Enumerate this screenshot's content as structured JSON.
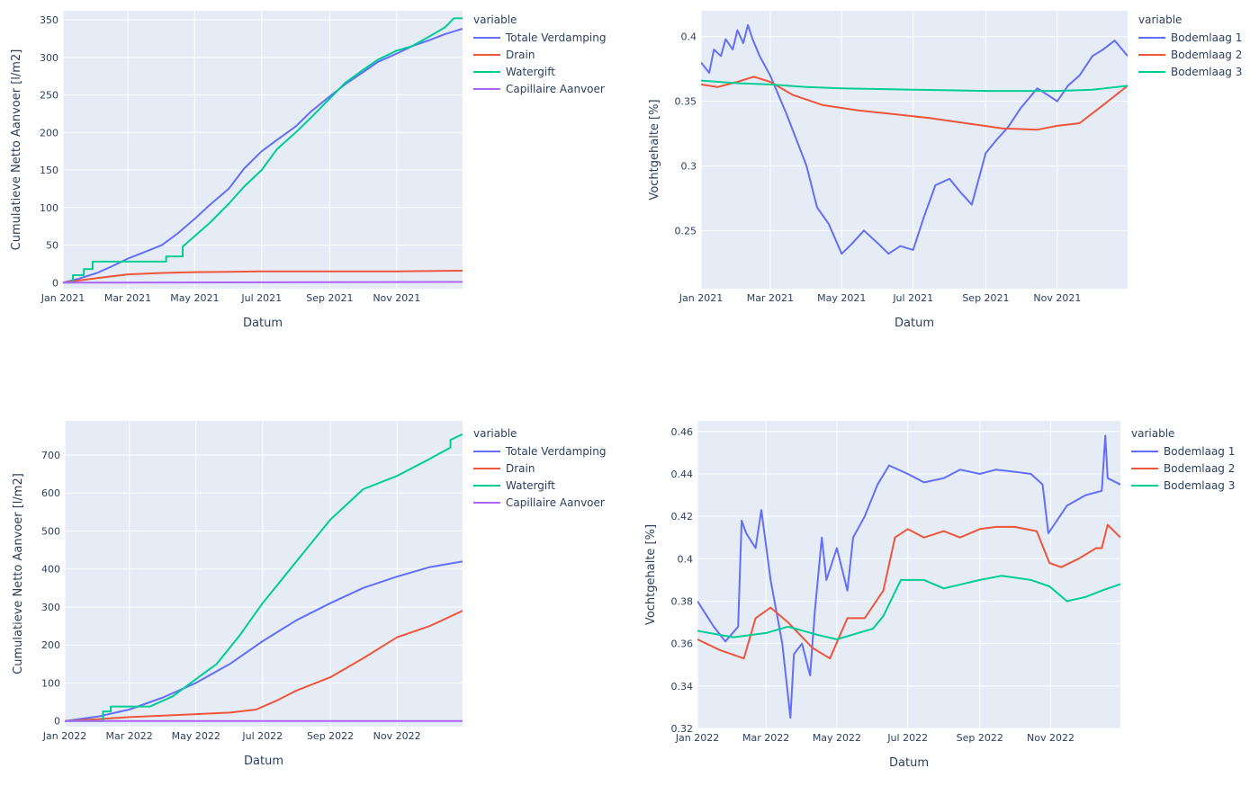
{
  "colors": {
    "plot_bg": "#E5ECF6",
    "grid": "#FFFFFF",
    "text": "#2A3F5F",
    "blue": "#636EFA",
    "red": "#EF553B",
    "green": "#00CC96",
    "purple": "#AB63FA"
  },
  "chart_data": [
    {
      "type": "line",
      "xlabel": "Datum",
      "ylabel": "Cumulatieve Netto Aanvoer [l/m2]",
      "legend_title": "variable",
      "legend_position": "top-right outside",
      "grid": true,
      "xlim": [
        "2021-01-01",
        "2021-12-31"
      ],
      "ylim": [
        -8,
        362
      ],
      "xticks": [
        {
          "date": "2021-01-01",
          "label": "Jan 2021"
        },
        {
          "date": "2021-03-01",
          "label": "Mar 2021"
        },
        {
          "date": "2021-05-01",
          "label": "May 2021"
        },
        {
          "date": "2021-07-01",
          "label": "Jul 2021"
        },
        {
          "date": "2021-09-01",
          "label": "Sep 2021"
        },
        {
          "date": "2021-11-01",
          "label": "Nov 2021"
        }
      ],
      "yticks": [
        {
          "value": 0,
          "label": "0"
        },
        {
          "value": 50,
          "label": "50"
        },
        {
          "value": 100,
          "label": "100"
        },
        {
          "value": 150,
          "label": "150"
        },
        {
          "value": 200,
          "label": "200"
        },
        {
          "value": 250,
          "label": "250"
        },
        {
          "value": 300,
          "label": "300"
        },
        {
          "value": 350,
          "label": "350"
        }
      ],
      "series": [
        {
          "name": "Totale Verdamping",
          "color": "#636EFA",
          "x": [
            "2021-01-01",
            "2021-01-15",
            "2021-02-01",
            "2021-02-15",
            "2021-03-01",
            "2021-03-15",
            "2021-04-01",
            "2021-04-15",
            "2021-05-01",
            "2021-05-15",
            "2021-06-01",
            "2021-06-15",
            "2021-07-01",
            "2021-07-15",
            "2021-08-01",
            "2021-08-15",
            "2021-09-01",
            "2021-09-15",
            "2021-10-01",
            "2021-10-15",
            "2021-11-01",
            "2021-11-15",
            "2021-12-01",
            "2021-12-15",
            "2021-12-31"
          ],
          "y": [
            0,
            5,
            13,
            22,
            32,
            40,
            50,
            65,
            85,
            104,
            125,
            152,
            175,
            190,
            208,
            228,
            248,
            264,
            280,
            294,
            305,
            315,
            323,
            331,
            338
          ]
        },
        {
          "name": "Drain",
          "color": "#EF553B",
          "x": [
            "2021-01-01",
            "2021-02-01",
            "2021-03-01",
            "2021-04-01",
            "2021-05-01",
            "2021-06-01",
            "2021-07-01",
            "2021-09-01",
            "2021-11-01",
            "2021-12-31"
          ],
          "y": [
            0,
            6,
            11,
            13,
            14,
            14.5,
            15,
            15,
            15,
            16
          ]
        },
        {
          "name": "Watergift",
          "color": "#00CC96",
          "x": [
            "2021-01-01",
            "2021-01-10",
            "2021-01-10",
            "2021-01-20",
            "2021-01-20",
            "2021-01-28",
            "2021-01-28",
            "2021-04-05",
            "2021-04-05",
            "2021-04-20",
            "2021-04-20",
            "2021-05-01",
            "2021-05-15",
            "2021-06-01",
            "2021-06-15",
            "2021-07-01",
            "2021-07-15",
            "2021-08-01",
            "2021-08-15",
            "2021-09-01",
            "2021-09-15",
            "2021-10-01",
            "2021-10-15",
            "2021-11-01",
            "2021-11-15",
            "2021-12-01",
            "2021-12-15",
            "2021-12-23",
            "2021-12-31"
          ],
          "y": [
            0,
            0,
            10,
            10,
            18,
            18,
            28,
            28,
            35,
            35,
            48,
            62,
            80,
            105,
            128,
            150,
            178,
            200,
            220,
            245,
            266,
            283,
            297,
            309,
            315,
            328,
            340,
            352,
            352
          ],
          "step": true
        },
        {
          "name": "Capillaire Aanvoer",
          "color": "#AB63FA",
          "x": [
            "2021-01-01",
            "2021-12-31"
          ],
          "y": [
            0,
            1
          ]
        }
      ]
    },
    {
      "type": "line",
      "xlabel": "Datum",
      "ylabel": "Vochtgehalte [%]",
      "legend_title": "variable",
      "legend_position": "top-right outside",
      "grid": true,
      "xlim": [
        "2021-01-01",
        "2021-12-31"
      ],
      "ylim": [
        0.205,
        0.42
      ],
      "xticks": [
        {
          "date": "2021-01-01",
          "label": "Jan 2021"
        },
        {
          "date": "2021-03-01",
          "label": "Mar 2021"
        },
        {
          "date": "2021-05-01",
          "label": "May 2021"
        },
        {
          "date": "2021-07-01",
          "label": "Jul 2021"
        },
        {
          "date": "2021-09-01",
          "label": "Sep 2021"
        },
        {
          "date": "2021-11-01",
          "label": "Nov 2021"
        }
      ],
      "yticks": [
        {
          "value": 0.25,
          "label": "0.25"
        },
        {
          "value": 0.3,
          "label": "0.3"
        },
        {
          "value": 0.35,
          "label": "0.35"
        },
        {
          "value": 0.4,
          "label": "0.4"
        }
      ],
      "series": [
        {
          "name": "Bodemlaag 1",
          "color": "#636EFA",
          "x": [
            "2021-01-01",
            "2021-01-08",
            "2021-01-12",
            "2021-01-18",
            "2021-01-22",
            "2021-01-28",
            "2021-02-01",
            "2021-02-06",
            "2021-02-10",
            "2021-02-14",
            "2021-02-20",
            "2021-03-01",
            "2021-03-15",
            "2021-04-01",
            "2021-04-10",
            "2021-04-20",
            "2021-05-01",
            "2021-05-10",
            "2021-05-20",
            "2021-06-01",
            "2021-06-10",
            "2021-06-20",
            "2021-07-01",
            "2021-07-10",
            "2021-07-20",
            "2021-08-01",
            "2021-08-10",
            "2021-08-20",
            "2021-09-01",
            "2021-09-10",
            "2021-09-20",
            "2021-10-01",
            "2021-10-15",
            "2021-11-01",
            "2021-11-10",
            "2021-11-20",
            "2021-12-01",
            "2021-12-10",
            "2021-12-20",
            "2021-12-31"
          ],
          "y": [
            0.38,
            0.372,
            0.39,
            0.385,
            0.398,
            0.39,
            0.405,
            0.395,
            0.409,
            0.398,
            0.385,
            0.37,
            0.34,
            0.3,
            0.268,
            0.255,
            0.232,
            0.24,
            0.25,
            0.24,
            0.232,
            0.238,
            0.235,
            0.26,
            0.285,
            0.29,
            0.28,
            0.27,
            0.31,
            0.32,
            0.33,
            0.345,
            0.36,
            0.35,
            0.362,
            0.37,
            0.385,
            0.39,
            0.397,
            0.385
          ]
        },
        {
          "name": "Bodemlaag 2",
          "color": "#EF553B",
          "x": [
            "2021-01-01",
            "2021-01-15",
            "2021-02-01",
            "2021-02-15",
            "2021-03-01",
            "2021-03-20",
            "2021-04-15",
            "2021-05-15",
            "2021-06-15",
            "2021-07-15",
            "2021-08-15",
            "2021-09-15",
            "2021-10-15",
            "2021-11-01",
            "2021-11-20",
            "2021-12-10",
            "2021-12-31"
          ],
          "y": [
            0.363,
            0.361,
            0.365,
            0.369,
            0.365,
            0.355,
            0.347,
            0.343,
            0.34,
            0.337,
            0.333,
            0.329,
            0.328,
            0.331,
            0.333,
            0.347,
            0.362
          ]
        },
        {
          "name": "Bodemlaag 3",
          "color": "#00CC96",
          "x": [
            "2021-01-01",
            "2021-02-01",
            "2021-03-01",
            "2021-04-01",
            "2021-05-01",
            "2021-06-01",
            "2021-07-01",
            "2021-08-01",
            "2021-09-01",
            "2021-10-01",
            "2021-11-01",
            "2021-12-01",
            "2021-12-31"
          ],
          "y": [
            0.366,
            0.364,
            0.363,
            0.361,
            0.36,
            0.3595,
            0.359,
            0.3585,
            0.358,
            0.358,
            0.358,
            0.359,
            0.362
          ]
        }
      ]
    },
    {
      "type": "line",
      "xlabel": "Datum",
      "ylabel": "Cumulatieve Netto Aanvoer [l/m2]",
      "legend_title": "variable",
      "legend_position": "top-right outside",
      "grid": true,
      "xlim": [
        "2022-01-01",
        "2022-12-31"
      ],
      "ylim": [
        -15,
        790
      ],
      "xticks": [
        {
          "date": "2022-01-01",
          "label": "Jan 2022"
        },
        {
          "date": "2022-03-01",
          "label": "Mar 2022"
        },
        {
          "date": "2022-05-01",
          "label": "May 2022"
        },
        {
          "date": "2022-07-01",
          "label": "Jul 2022"
        },
        {
          "date": "2022-09-01",
          "label": "Sep 2022"
        },
        {
          "date": "2022-11-01",
          "label": "Nov 2022"
        }
      ],
      "yticks": [
        {
          "value": 0,
          "label": "0"
        },
        {
          "value": 100,
          "label": "100"
        },
        {
          "value": 200,
          "label": "200"
        },
        {
          "value": 300,
          "label": "300"
        },
        {
          "value": 400,
          "label": "400"
        },
        {
          "value": 500,
          "label": "500"
        },
        {
          "value": 600,
          "label": "600"
        },
        {
          "value": 700,
          "label": "700"
        }
      ],
      "series": [
        {
          "name": "Totale Verdamping",
          "color": "#636EFA",
          "x": [
            "2022-01-01",
            "2022-02-01",
            "2022-03-01",
            "2022-04-01",
            "2022-05-01",
            "2022-06-01",
            "2022-07-01",
            "2022-08-01",
            "2022-09-01",
            "2022-10-01",
            "2022-11-01",
            "2022-12-01",
            "2022-12-31"
          ],
          "y": [
            0,
            12,
            30,
            62,
            100,
            150,
            210,
            265,
            310,
            350,
            380,
            405,
            420
          ]
        },
        {
          "name": "Drain",
          "color": "#EF553B",
          "x": [
            "2022-01-01",
            "2022-02-01",
            "2022-03-01",
            "2022-04-01",
            "2022-05-01",
            "2022-06-01",
            "2022-06-25",
            "2022-07-15",
            "2022-08-01",
            "2022-09-01",
            "2022-10-01",
            "2022-11-01",
            "2022-12-01",
            "2022-12-31"
          ],
          "y": [
            0,
            5,
            10,
            14,
            18,
            22,
            30,
            55,
            80,
            115,
            165,
            220,
            250,
            290
          ]
        },
        {
          "name": "Watergift",
          "color": "#00CC96",
          "x": [
            "2022-01-01",
            "2022-02-05",
            "2022-02-05",
            "2022-02-12",
            "2022-02-12",
            "2022-03-20",
            "2022-04-10",
            "2022-05-01",
            "2022-05-20",
            "2022-06-10",
            "2022-07-01",
            "2022-08-01",
            "2022-09-01",
            "2022-10-01",
            "2022-11-01",
            "2022-12-01",
            "2022-12-20",
            "2022-12-20",
            "2022-12-31"
          ],
          "y": [
            0,
            0,
            25,
            25,
            38,
            38,
            65,
            110,
            150,
            225,
            310,
            420,
            530,
            610,
            645,
            690,
            720,
            740,
            755
          ]
        },
        {
          "name": "Capillaire Aanvoer",
          "color": "#AB63FA",
          "x": [
            "2022-01-01",
            "2022-12-31"
          ],
          "y": [
            0,
            0
          ]
        }
      ]
    },
    {
      "type": "line",
      "xlabel": "Datum",
      "ylabel": "Vochtgehalte [%]",
      "legend_title": "variable",
      "legend_position": "top-right outside",
      "grid": true,
      "xlim": [
        "2022-01-01",
        "2022-12-31"
      ],
      "ylim": [
        0.32,
        0.465
      ],
      "xticks": [
        {
          "date": "2022-01-01",
          "label": "Jan 2022"
        },
        {
          "date": "2022-03-01",
          "label": "Mar 2022"
        },
        {
          "date": "2022-05-01",
          "label": "May 2022"
        },
        {
          "date": "2022-07-01",
          "label": "Jul 2022"
        },
        {
          "date": "2022-09-01",
          "label": "Sep 2022"
        },
        {
          "date": "2022-11-01",
          "label": "Nov 2022"
        }
      ],
      "yticks": [
        {
          "value": 0.32,
          "label": "0.32"
        },
        {
          "value": 0.34,
          "label": "0.34"
        },
        {
          "value": 0.36,
          "label": "0.36"
        },
        {
          "value": 0.38,
          "label": "0.38"
        },
        {
          "value": 0.4,
          "label": "0.4"
        },
        {
          "value": 0.42,
          "label": "0.42"
        },
        {
          "value": 0.44,
          "label": "0.44"
        },
        {
          "value": 0.46,
          "label": "0.46"
        }
      ],
      "series": [
        {
          "name": "Bodemlaag 1",
          "color": "#636EFA",
          "x": [
            "2022-01-01",
            "2022-01-15",
            "2022-01-25",
            "2022-02-05",
            "2022-02-08",
            "2022-02-12",
            "2022-02-20",
            "2022-02-25",
            "2022-03-05",
            "2022-03-15",
            "2022-03-22",
            "2022-03-25",
            "2022-04-01",
            "2022-04-08",
            "2022-04-12",
            "2022-04-18",
            "2022-04-22",
            "2022-05-01",
            "2022-05-10",
            "2022-05-15",
            "2022-05-25",
            "2022-06-05",
            "2022-06-15",
            "2022-07-01",
            "2022-07-15",
            "2022-08-01",
            "2022-08-15",
            "2022-09-01",
            "2022-09-15",
            "2022-10-01",
            "2022-10-15",
            "2022-10-25",
            "2022-10-30",
            "2022-11-15",
            "2022-12-01",
            "2022-12-15",
            "2022-12-18",
            "2022-12-20",
            "2022-12-31"
          ],
          "y": [
            0.38,
            0.368,
            0.361,
            0.368,
            0.418,
            0.412,
            0.405,
            0.423,
            0.39,
            0.36,
            0.325,
            0.355,
            0.36,
            0.345,
            0.375,
            0.41,
            0.39,
            0.405,
            0.385,
            0.41,
            0.42,
            0.435,
            0.444,
            0.44,
            0.436,
            0.438,
            0.442,
            0.44,
            0.442,
            0.441,
            0.44,
            0.435,
            0.412,
            0.425,
            0.43,
            0.432,
            0.458,
            0.438,
            0.435
          ]
        },
        {
          "name": "Bodemlaag 2",
          "color": "#EF553B",
          "x": [
            "2022-01-01",
            "2022-01-20",
            "2022-02-10",
            "2022-02-20",
            "2022-03-05",
            "2022-03-20",
            "2022-04-10",
            "2022-04-25",
            "2022-05-10",
            "2022-05-25",
            "2022-06-10",
            "2022-06-20",
            "2022-07-01",
            "2022-07-15",
            "2022-08-01",
            "2022-08-15",
            "2022-09-01",
            "2022-09-15",
            "2022-10-01",
            "2022-10-20",
            "2022-10-31",
            "2022-11-10",
            "2022-11-25",
            "2022-12-10",
            "2022-12-15",
            "2022-12-20",
            "2022-12-31"
          ],
          "y": [
            0.362,
            0.357,
            0.353,
            0.372,
            0.377,
            0.37,
            0.358,
            0.353,
            0.372,
            0.372,
            0.385,
            0.41,
            0.414,
            0.41,
            0.413,
            0.41,
            0.414,
            0.415,
            0.415,
            0.413,
            0.398,
            0.396,
            0.4,
            0.405,
            0.405,
            0.416,
            0.41
          ]
        },
        {
          "name": "Bodemlaag 3",
          "color": "#00CC96",
          "x": [
            "2022-01-01",
            "2022-02-01",
            "2022-03-01",
            "2022-03-20",
            "2022-04-15",
            "2022-05-01",
            "2022-06-01",
            "2022-06-10",
            "2022-06-25",
            "2022-07-15",
            "2022-08-01",
            "2022-09-01",
            "2022-09-20",
            "2022-10-15",
            "2022-10-31",
            "2022-11-15",
            "2022-12-01",
            "2022-12-15",
            "2022-12-31"
          ],
          "y": [
            0.366,
            0.363,
            0.365,
            0.368,
            0.364,
            0.362,
            0.367,
            0.373,
            0.39,
            0.39,
            0.386,
            0.39,
            0.392,
            0.39,
            0.387,
            0.38,
            0.382,
            0.385,
            0.388
          ]
        }
      ]
    }
  ]
}
